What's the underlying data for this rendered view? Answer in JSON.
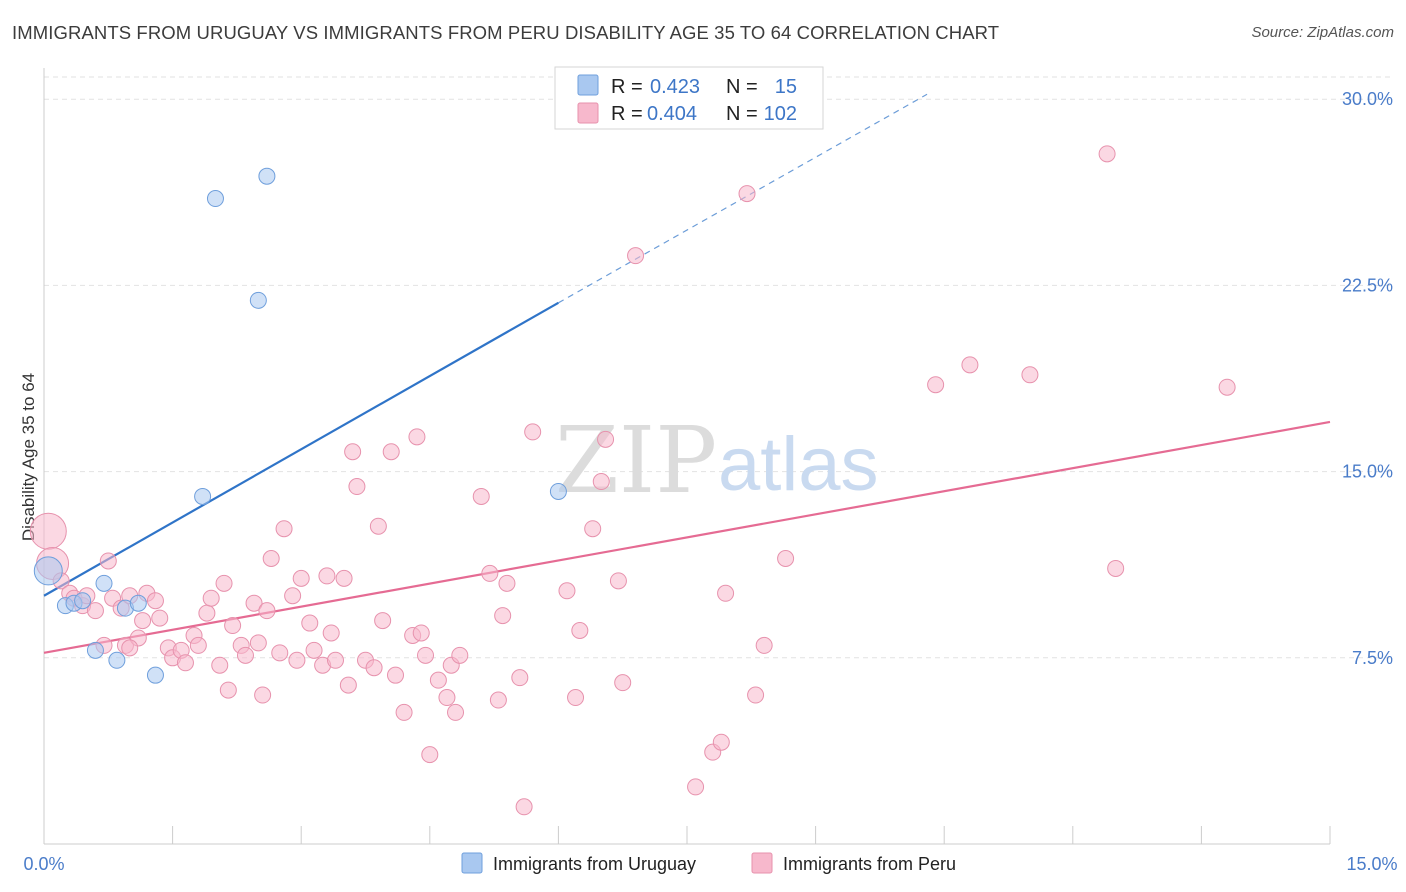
{
  "header": {
    "title": "IMMIGRANTS FROM URUGUAY VS IMMIGRANTS FROM PERU DISABILITY AGE 35 TO 64 CORRELATION CHART",
    "source": "Source: ZipAtlas.com"
  },
  "watermark": {
    "zip": "ZIP",
    "atlas": "atlas"
  },
  "legend": {
    "r_label": "R =",
    "n_label": "N =",
    "items": [
      {
        "r": "0.423",
        "n": "15",
        "color": "#a9c8f0",
        "stroke": "#6f9fdc"
      },
      {
        "r": "0.404",
        "n": "102",
        "color": "#f7b8cc",
        "stroke": "#e792ad"
      }
    ]
  },
  "chart_data": {
    "type": "scatter",
    "xlabel": "",
    "ylabel": "Disability Age 35 to 64",
    "xlim": [
      0,
      15
    ],
    "ylim": [
      0,
      31.5
    ],
    "x_tick_labels": [
      "0.0%",
      "15.0%"
    ],
    "y_tick_values": [
      7.5,
      15.0,
      22.5,
      30.0
    ],
    "y_tick_labels": [
      "7.5%",
      "15.0%",
      "22.5%",
      "30.0%"
    ],
    "grid": true,
    "legend_position": "top-center",
    "series": [
      {
        "name": "Immigrants from Uruguay",
        "color": "#a9c8f0",
        "stroke": "#6f9fdc",
        "line_color": "#2f74c8",
        "trend": {
          "x0": 0,
          "y0": 10.0,
          "x1": 6.0,
          "y1": 21.8,
          "dash_to_x": 10.3,
          "dash_to_y": 30.2
        },
        "points": [
          [
            0.05,
            11.0
          ],
          [
            0.25,
            9.6
          ],
          [
            0.35,
            9.7
          ],
          [
            0.45,
            9.8
          ],
          [
            0.6,
            7.8
          ],
          [
            0.7,
            10.5
          ],
          [
            0.85,
            7.4
          ],
          [
            0.95,
            9.5
          ],
          [
            1.1,
            9.7
          ],
          [
            1.3,
            6.8
          ],
          [
            1.85,
            14.0
          ],
          [
            2.0,
            26.0
          ],
          [
            2.5,
            21.9
          ],
          [
            2.6,
            26.9
          ],
          [
            6.0,
            14.2
          ]
        ],
        "sizes": [
          14,
          8,
          8,
          8,
          8,
          8,
          8,
          8,
          8,
          8,
          8,
          8,
          8,
          8,
          8
        ]
      },
      {
        "name": "Immigrants from Peru",
        "color": "#f7b8cc",
        "stroke": "#e792ad",
        "line_color": "#e56b93",
        "trend": {
          "x0": 0,
          "y0": 7.7,
          "x1": 15.0,
          "y1": 17.0
        },
        "points": [
          [
            0.05,
            12.6
          ],
          [
            0.1,
            11.3
          ],
          [
            0.2,
            10.6
          ],
          [
            0.3,
            10.1
          ],
          [
            0.35,
            9.9
          ],
          [
            0.45,
            9.6
          ],
          [
            0.5,
            10.0
          ],
          [
            0.6,
            9.4
          ],
          [
            0.7,
            8.0
          ],
          [
            0.75,
            11.4
          ],
          [
            0.8,
            9.9
          ],
          [
            0.9,
            9.5
          ],
          [
            0.95,
            8.0
          ],
          [
            1.0,
            10.0
          ],
          [
            1.1,
            8.3
          ],
          [
            1.15,
            9.0
          ],
          [
            1.2,
            10.1
          ],
          [
            1.3,
            9.8
          ],
          [
            1.35,
            9.1
          ],
          [
            1.45,
            7.9
          ],
          [
            1.5,
            7.5
          ],
          [
            1.6,
            7.8
          ],
          [
            1.65,
            7.3
          ],
          [
            1.75,
            8.4
          ],
          [
            1.8,
            8.0
          ],
          [
            1.9,
            9.3
          ],
          [
            1.95,
            9.9
          ],
          [
            2.05,
            7.2
          ],
          [
            2.1,
            10.5
          ],
          [
            2.2,
            8.8
          ],
          [
            2.3,
            8.0
          ],
          [
            2.35,
            7.6
          ],
          [
            2.45,
            9.7
          ],
          [
            2.5,
            8.1
          ],
          [
            2.55,
            6.0
          ],
          [
            2.6,
            9.4
          ],
          [
            2.65,
            11.5
          ],
          [
            2.75,
            7.7
          ],
          [
            2.8,
            12.7
          ],
          [
            2.9,
            10.0
          ],
          [
            2.95,
            7.4
          ],
          [
            3.0,
            10.7
          ],
          [
            3.1,
            8.9
          ],
          [
            3.15,
            7.8
          ],
          [
            3.25,
            7.2
          ],
          [
            3.3,
            10.8
          ],
          [
            3.35,
            8.5
          ],
          [
            3.4,
            7.4
          ],
          [
            3.5,
            10.7
          ],
          [
            3.55,
            6.4
          ],
          [
            3.6,
            15.8
          ],
          [
            3.65,
            14.4
          ],
          [
            3.75,
            7.4
          ],
          [
            3.85,
            7.1
          ],
          [
            3.9,
            12.8
          ],
          [
            3.95,
            9.0
          ],
          [
            4.05,
            15.8
          ],
          [
            4.1,
            6.8
          ],
          [
            4.2,
            5.3
          ],
          [
            4.3,
            8.4
          ],
          [
            4.35,
            16.4
          ],
          [
            4.4,
            8.5
          ],
          [
            4.45,
            7.6
          ],
          [
            4.5,
            3.6
          ],
          [
            4.6,
            6.6
          ],
          [
            4.7,
            5.9
          ],
          [
            4.75,
            7.2
          ],
          [
            4.8,
            5.3
          ],
          [
            4.85,
            7.6
          ],
          [
            5.1,
            14.0
          ],
          [
            5.2,
            10.9
          ],
          [
            5.3,
            5.8
          ],
          [
            5.35,
            9.2
          ],
          [
            5.4,
            10.5
          ],
          [
            5.55,
            6.7
          ],
          [
            5.6,
            1.5
          ],
          [
            5.7,
            16.6
          ],
          [
            6.2,
            5.9
          ],
          [
            6.25,
            8.6
          ],
          [
            6.4,
            12.7
          ],
          [
            6.5,
            14.6
          ],
          [
            6.55,
            16.3
          ],
          [
            6.7,
            10.6
          ],
          [
            6.75,
            6.5
          ],
          [
            6.9,
            23.7
          ],
          [
            7.6,
            2.3
          ],
          [
            7.8,
            3.7
          ],
          [
            7.95,
            10.1
          ],
          [
            8.2,
            26.2
          ],
          [
            8.3,
            6.0
          ],
          [
            8.4,
            8.0
          ],
          [
            8.65,
            11.5
          ],
          [
            10.4,
            18.5
          ],
          [
            10.8,
            19.3
          ],
          [
            11.5,
            18.9
          ],
          [
            12.4,
            27.8
          ],
          [
            12.5,
            11.1
          ],
          [
            13.8,
            18.4
          ],
          [
            7.9,
            4.1
          ],
          [
            6.1,
            10.2
          ],
          [
            2.15,
            6.2
          ],
          [
            1.0,
            7.9
          ]
        ],
        "sizes": [
          18,
          16,
          8,
          8,
          8,
          8,
          8,
          8,
          8,
          8,
          8,
          8,
          8,
          8,
          8,
          8,
          8,
          8,
          8,
          8,
          8,
          8,
          8,
          8,
          8,
          8,
          8,
          8,
          8,
          8,
          8,
          8,
          8,
          8,
          8,
          8,
          8,
          8,
          8,
          8,
          8,
          8,
          8,
          8,
          8,
          8,
          8,
          8,
          8,
          8,
          8,
          8,
          8,
          8,
          8,
          8,
          8,
          8,
          8,
          8,
          8,
          8,
          8,
          8,
          8,
          8,
          8,
          8,
          8,
          8,
          8,
          8,
          8,
          8,
          8,
          8,
          8,
          8,
          8,
          8,
          8,
          8,
          8,
          8,
          8,
          8,
          8,
          8,
          8,
          8,
          8,
          8,
          8,
          8,
          8,
          8,
          8,
          8,
          8,
          8,
          8,
          8
        ]
      }
    ]
  }
}
